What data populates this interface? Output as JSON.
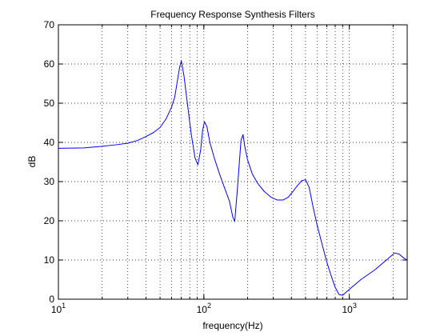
{
  "chart_data": {
    "type": "line",
    "title": "Frequency Response Synthesis Filters",
    "xlabel": "frequency(Hz)",
    "ylabel": "dB",
    "xscale": "log",
    "xlim": [
      10,
      2500
    ],
    "ylim": [
      0,
      70
    ],
    "grid": true,
    "grid_style": "dotted",
    "legend": "none",
    "line_color": "#0000ff",
    "y_ticks": [
      0,
      10,
      20,
      30,
      40,
      50,
      60,
      70
    ],
    "x_ticks": [
      10,
      100,
      1000
    ],
    "x_tick_labels": [
      {
        "base": "10",
        "exp": "1"
      },
      {
        "base": "10",
        "exp": "2"
      },
      {
        "base": "10",
        "exp": "3"
      }
    ],
    "series": [
      {
        "x": [
          10,
          15,
          20,
          25,
          30,
          35,
          40,
          45,
          50,
          55,
          60,
          63,
          66,
          68,
          70,
          73,
          77,
          82,
          87,
          91,
          95,
          98,
          101,
          105,
          110,
          118,
          128,
          140,
          150,
          158,
          163,
          170,
          180,
          186,
          191,
          200,
          215,
          235,
          260,
          290,
          320,
          350,
          380,
          410,
          440,
          470,
          500,
          530,
          560,
          600,
          650,
          700,
          750,
          800,
          850,
          900,
          1000,
          1200,
          1500,
          1800,
          2050,
          2200,
          2350,
          2500
        ],
        "y": [
          38.5,
          38.6,
          39.0,
          39.4,
          39.8,
          40.5,
          41.5,
          42.5,
          43.8,
          46.0,
          49.0,
          51.5,
          56.0,
          59.0,
          60.8,
          57.0,
          50.0,
          42.0,
          36.0,
          34.3,
          38.0,
          43.0,
          45.3,
          44.0,
          40.0,
          36.0,
          32.0,
          28.0,
          25.0,
          21.0,
          19.8,
          28.0,
          40.5,
          42.0,
          39.0,
          35.5,
          32.0,
          29.5,
          27.5,
          26.0,
          25.3,
          25.3,
          26.0,
          27.5,
          29.0,
          30.2,
          30.5,
          28.5,
          24.0,
          19.0,
          14.0,
          9.5,
          6.0,
          3.0,
          1.2,
          1.0,
          2.5,
          5.0,
          7.5,
          10.0,
          11.8,
          11.5,
          10.6,
          9.9
        ]
      }
    ]
  }
}
